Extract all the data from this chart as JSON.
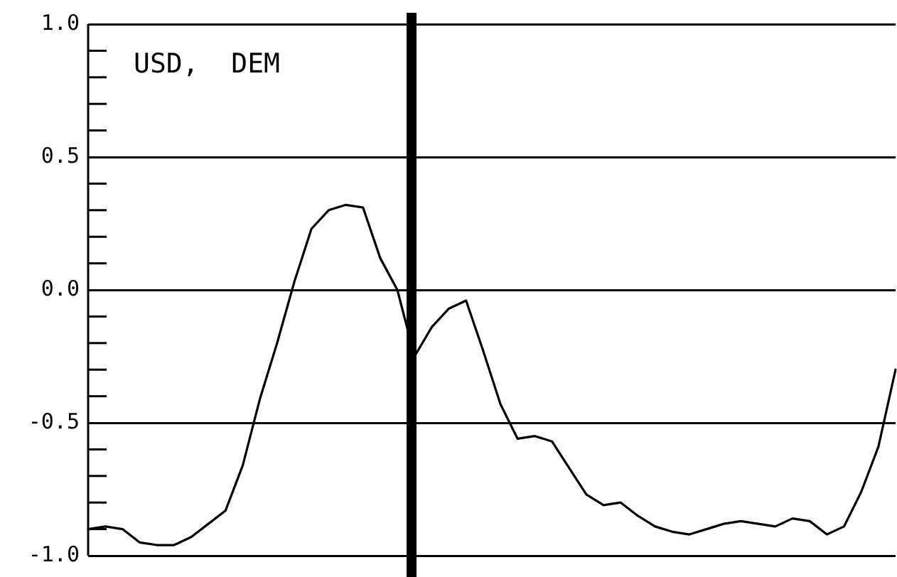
{
  "chart_data": {
    "type": "line",
    "categories": [
      null,
      null,
      null,
      null,
      null,
      null,
      null,
      null,
      null,
      null,
      null,
      null,
      null,
      null,
      null,
      null,
      null,
      null,
      null,
      null,
      null,
      null,
      null,
      null,
      null,
      null,
      null,
      null,
      null,
      null,
      null,
      null,
      null,
      null,
      null,
      null,
      null,
      null,
      null,
      null,
      null,
      null,
      null,
      null,
      null,
      null,
      null,
      null
    ],
    "series": [
      {
        "color": "#000000",
        "values": [
          -0.9,
          -0.89,
          -0.9,
          -0.95,
          -0.96,
          -0.96,
          -0.93,
          -0.88,
          -0.83,
          -0.66,
          -0.41,
          -0.2,
          0.03,
          0.23,
          0.3,
          0.32,
          0.31,
          0.12,
          0.0,
          -0.25,
          -0.14,
          -0.07,
          -0.04,
          -0.23,
          -0.43,
          -0.56,
          -0.55,
          -0.57,
          -0.67,
          -0.77,
          -0.81,
          -0.8,
          -0.85,
          -0.89,
          -0.91,
          -0.92,
          -0.9,
          -0.88,
          -0.87,
          -0.88,
          -0.89,
          -0.86,
          -0.87,
          -0.92,
          -0.89,
          -0.76,
          -0.59,
          -0.3
        ]
      }
    ],
    "ylim": [
      -1.0,
      1.0
    ],
    "yticks": [
      {
        "value": -1.0,
        "label": "-1.0"
      },
      {
        "value": -0.9,
        "label": null
      },
      {
        "value": -0.8,
        "label": null
      },
      {
        "value": -0.7,
        "label": null
      },
      {
        "value": -0.6,
        "label": null
      },
      {
        "value": -0.5,
        "label": "-0.5"
      },
      {
        "value": -0.4,
        "label": null
      },
      {
        "value": -0.3,
        "label": null
      },
      {
        "value": -0.2,
        "label": null
      },
      {
        "value": -0.1,
        "label": null
      },
      {
        "value": 0,
        "label": "0.0"
      },
      {
        "value": 0.1,
        "label": null
      },
      {
        "value": 0.2,
        "label": null
      },
      {
        "value": 0.3,
        "label": null
      },
      {
        "value": 0.4,
        "label": null
      },
      {
        "value": 0.5,
        "label": "0.5"
      },
      {
        "value": 0.6,
        "label": null
      },
      {
        "value": 0.7,
        "label": null
      },
      {
        "value": 0.8,
        "label": null
      },
      {
        "value": 0.9,
        "label": null
      },
      {
        "value": 1.0,
        "label": "1.0"
      }
    ],
    "tick_labels": "y",
    "grid": "y",
    "marker": "none",
    "line_style": "solid",
    "legend": false,
    "annotations": [
      "USD,  DEM"
    ]
  }
}
